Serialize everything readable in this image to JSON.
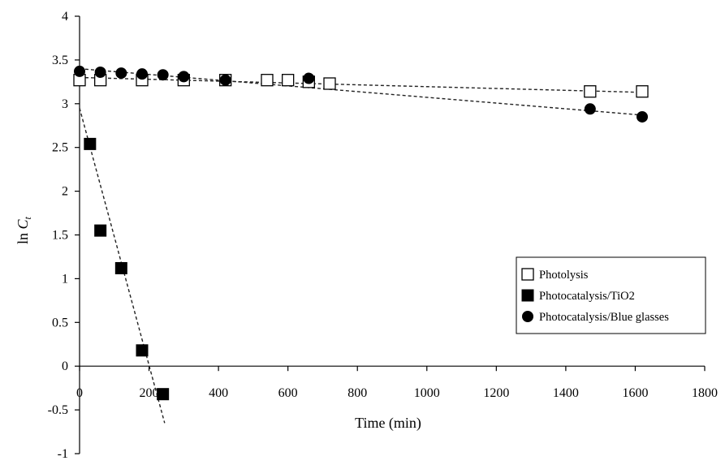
{
  "chart_data": {
    "type": "scatter",
    "title": "",
    "xlabel": "Time (min)",
    "ylabel": {
      "main": "ln ",
      "italic": "C",
      "subscript": "t"
    },
    "xlim": [
      0,
      1800
    ],
    "ylim": [
      -1,
      4
    ],
    "x_ticks": [
      0,
      200,
      400,
      600,
      800,
      1000,
      1200,
      1400,
      1600,
      1800
    ],
    "y_ticks": [
      4,
      3.5,
      3,
      2.5,
      2,
      1.5,
      1,
      0.5,
      0,
      -0.5,
      -1
    ],
    "x_tick_labels": [
      "0",
      "200",
      "400",
      "600",
      "800",
      "1000",
      "1200",
      "1400",
      "1600",
      "1800"
    ],
    "y_tick_labels": [
      "4",
      "3.5",
      "3",
      "2.5",
      "2",
      "1.5",
      "1",
      "0.5",
      "0",
      "-0.5",
      "-1"
    ],
    "grid": false,
    "legend_position": "right",
    "series": [
      {
        "name": "Photolysis",
        "marker": "square-open",
        "color": "#000000",
        "points": [
          [
            0,
            3.27
          ],
          [
            60,
            3.27
          ],
          [
            180,
            3.27
          ],
          [
            300,
            3.27
          ],
          [
            420,
            3.27
          ],
          [
            540,
            3.27
          ],
          [
            600,
            3.27
          ],
          [
            660,
            3.25
          ],
          [
            720,
            3.23
          ],
          [
            1470,
            3.14
          ],
          [
            1620,
            3.14
          ]
        ],
        "trendline": [
          [
            0,
            3.3
          ],
          [
            1620,
            3.13
          ]
        ]
      },
      {
        "name": "Photocatalysis/TiO2",
        "marker": "square-filled",
        "color": "#000000",
        "points": [
          [
            30,
            2.54
          ],
          [
            60,
            1.55
          ],
          [
            120,
            1.12
          ],
          [
            180,
            0.18
          ],
          [
            240,
            -0.32
          ]
        ],
        "trendline": [
          [
            0,
            2.95
          ],
          [
            245,
            -0.65
          ]
        ]
      },
      {
        "name": "Photocatalysis/Blue glasses",
        "marker": "circle-filled",
        "color": "#000000",
        "points": [
          [
            0,
            3.37
          ],
          [
            60,
            3.36
          ],
          [
            120,
            3.35
          ],
          [
            180,
            3.34
          ],
          [
            240,
            3.33
          ],
          [
            300,
            3.31
          ],
          [
            420,
            3.27
          ],
          [
            660,
            3.29
          ],
          [
            1470,
            2.94
          ],
          [
            1620,
            2.85
          ]
        ],
        "trendline": [
          [
            0,
            3.4
          ],
          [
            1620,
            2.87
          ]
        ]
      }
    ]
  }
}
